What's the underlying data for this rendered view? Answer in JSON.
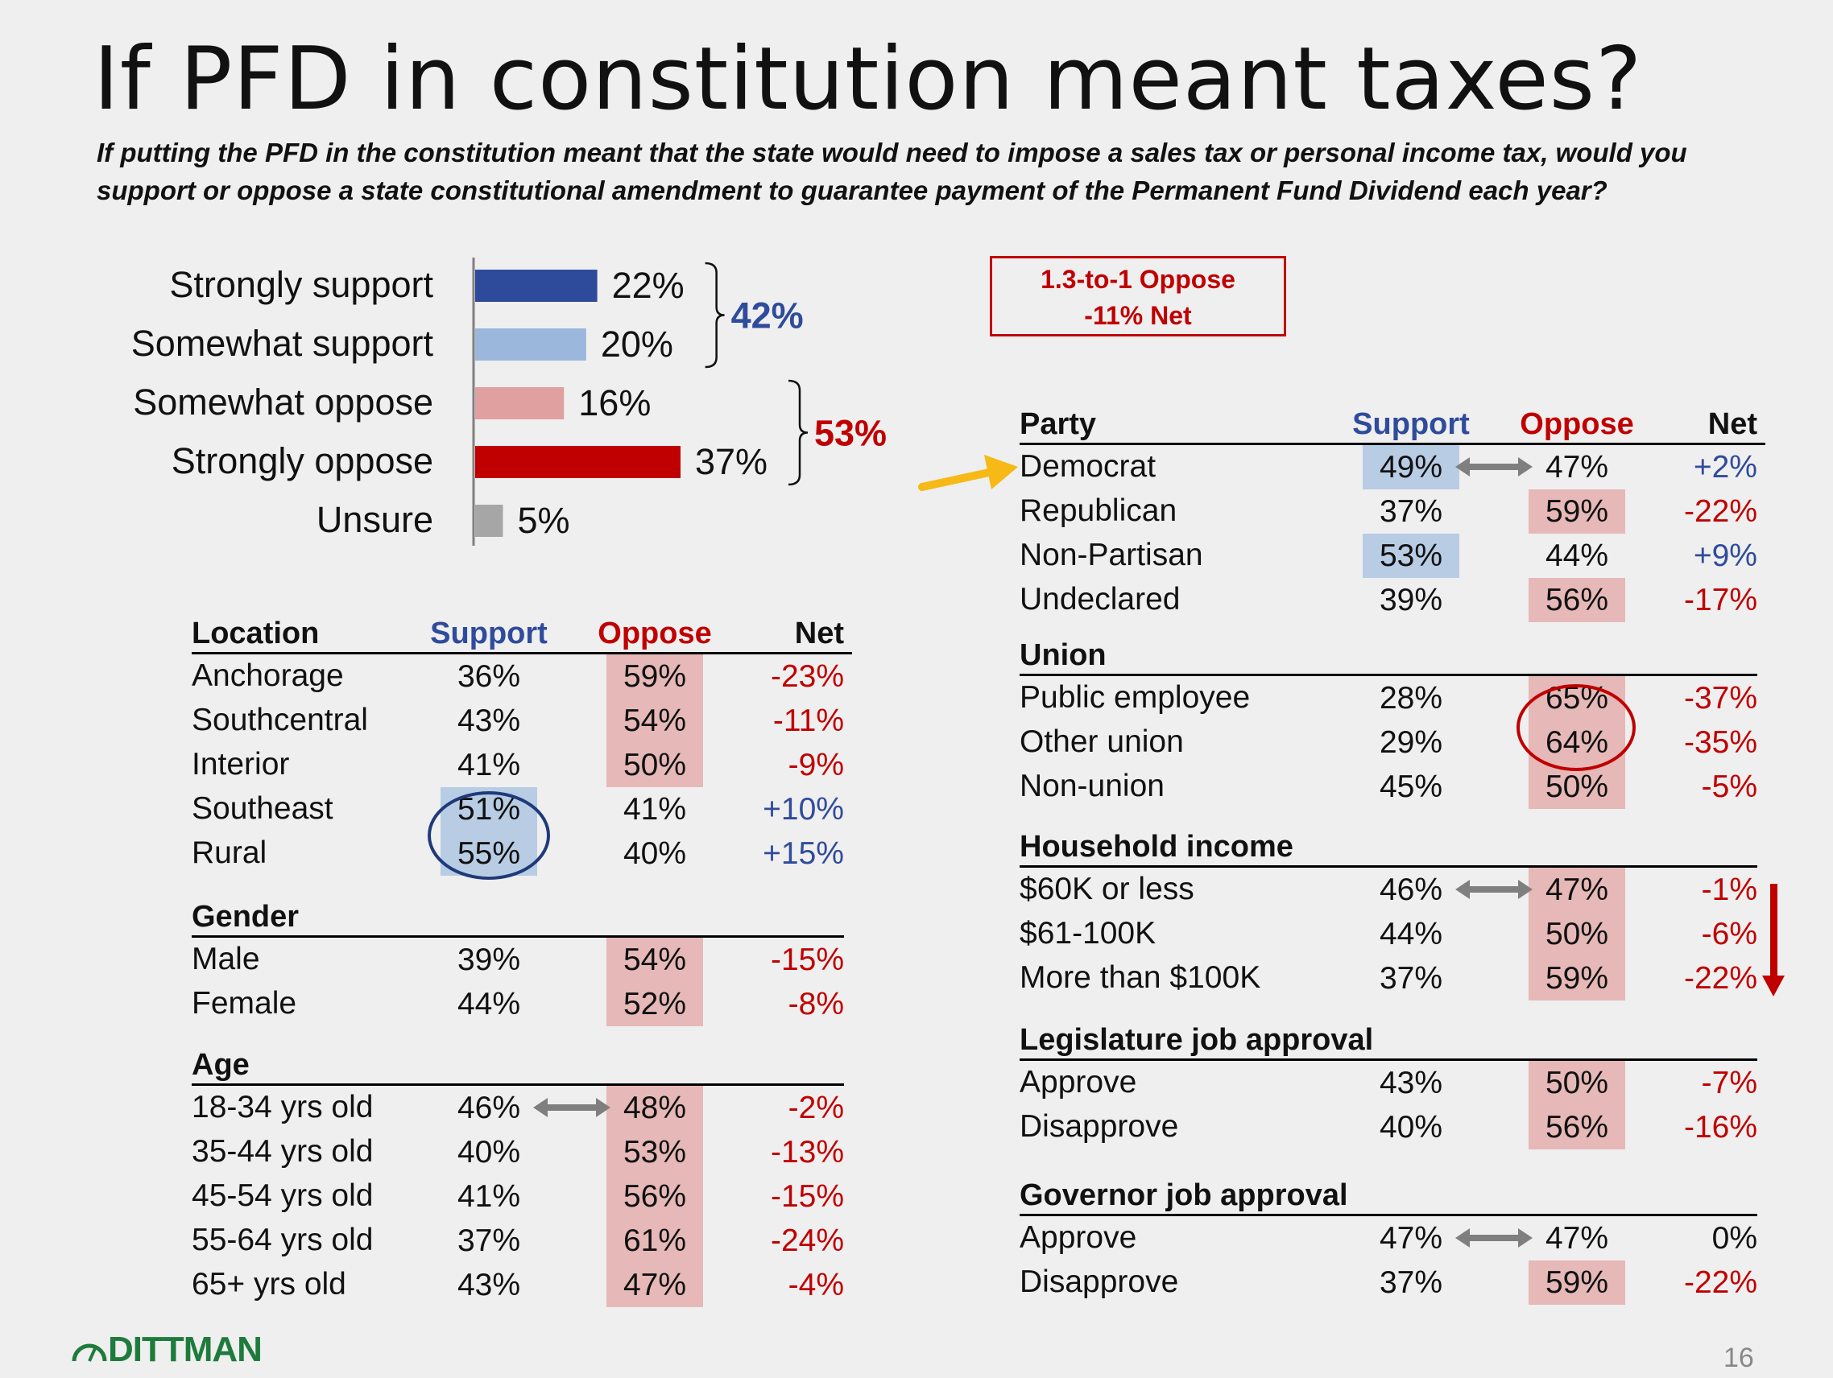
{
  "title": "If PFD in constitution meant taxes?",
  "subtitle": "If putting the PFD in the constitution meant that the state would need to impose a sales tax or personal income tax, would you support or oppose a state constitutional amendment to guarantee payment of the Permanent Fund Dividend each year?",
  "callout": {
    "line1": "1.3-to-1 Oppose",
    "line2": "-11% Net"
  },
  "chart_data": {
    "type": "bar",
    "orientation": "horizontal",
    "categories": [
      "Strongly support",
      "Somewhat support",
      "Somewhat oppose",
      "Strongly oppose",
      "Unsure"
    ],
    "values": [
      22,
      20,
      16,
      37,
      5
    ],
    "value_labels": [
      "22%",
      "20%",
      "16%",
      "37%",
      "5%"
    ],
    "colors": [
      "#2e4a9a",
      "#9bb7dc",
      "#e0a0a0",
      "#c00000",
      "#a6a6a6"
    ],
    "groups": [
      {
        "label": "42%",
        "categories": [
          "Strongly support",
          "Somewhat support"
        ],
        "color": "#2f4b9b"
      },
      {
        "label": "53%",
        "categories": [
          "Somewhat oppose",
          "Strongly oppose"
        ],
        "color": "#c00000"
      }
    ],
    "xlim": [
      0,
      37
    ]
  },
  "columns": {
    "support": "Support",
    "oppose": "Oppose",
    "net": "Net"
  },
  "colors": {
    "support": "#2f4b9b",
    "oppose": "#c00000",
    "highlight_red": "#e6b8b8",
    "highlight_blue": "#b8cce4",
    "brand": "#1e7b3c"
  },
  "left_sections": [
    {
      "title": "Location",
      "show_columns": true,
      "rows": [
        {
          "label": "Anchorage",
          "support": "36%",
          "oppose": "59%",
          "net": "-23%",
          "hl": "oppose"
        },
        {
          "label": "Southcentral",
          "support": "43%",
          "oppose": "54%",
          "net": "-11%",
          "hl": "oppose"
        },
        {
          "label": "Interior",
          "support": "41%",
          "oppose": "50%",
          "net": "-9%",
          "hl": "oppose"
        },
        {
          "label": "Southeast",
          "support": "51%",
          "oppose": "41%",
          "net": "+10%",
          "hl": "support"
        },
        {
          "label": "Rural",
          "support": "55%",
          "oppose": "40%",
          "net": "+15%",
          "hl": "support"
        }
      ]
    },
    {
      "title": "Gender",
      "rows": [
        {
          "label": "Male",
          "support": "39%",
          "oppose": "54%",
          "net": "-15%",
          "hl": "oppose"
        },
        {
          "label": "Female",
          "support": "44%",
          "oppose": "52%",
          "net": "-8%",
          "hl": "oppose"
        }
      ]
    },
    {
      "title": "Age",
      "rows": [
        {
          "label": "18-34 yrs old",
          "support": "46%",
          "oppose": "48%",
          "net": "-2%",
          "hl": "oppose",
          "arrow": true
        },
        {
          "label": "35-44 yrs old",
          "support": "40%",
          "oppose": "53%",
          "net": "-13%",
          "hl": "oppose"
        },
        {
          "label": "45-54 yrs old",
          "support": "41%",
          "oppose": "56%",
          "net": "-15%",
          "hl": "oppose"
        },
        {
          "label": "55-64 yrs old",
          "support": "37%",
          "oppose": "61%",
          "net": "-24%",
          "hl": "oppose"
        },
        {
          "label": "65+ yrs old",
          "support": "43%",
          "oppose": "47%",
          "net": "-4%",
          "hl": "oppose"
        }
      ]
    }
  ],
  "right_sections": [
    {
      "title": "Party",
      "show_columns": true,
      "rows": [
        {
          "label": "Democrat",
          "support": "49%",
          "oppose": "47%",
          "net": "+2%",
          "hl": "support",
          "arrow": true
        },
        {
          "label": "Republican",
          "support": "37%",
          "oppose": "59%",
          "net": "-22%",
          "hl": "oppose"
        },
        {
          "label": "Non-Partisan",
          "support": "53%",
          "oppose": "44%",
          "net": "+9%",
          "hl": "support"
        },
        {
          "label": "Undeclared",
          "support": "39%",
          "oppose": "56%",
          "net": "-17%",
          "hl": "oppose"
        }
      ]
    },
    {
      "title": "Union",
      "rows": [
        {
          "label": "Public employee",
          "support": "28%",
          "oppose": "65%",
          "net": "-37%",
          "hl": "oppose"
        },
        {
          "label": "Other union",
          "support": "29%",
          "oppose": "64%",
          "net": "-35%",
          "hl": "oppose"
        },
        {
          "label": "Non-union",
          "support": "45%",
          "oppose": "50%",
          "net": "-5%",
          "hl": "oppose"
        }
      ]
    },
    {
      "title": "Household income",
      "rows": [
        {
          "label": "$60K or less",
          "support": "46%",
          "oppose": "47%",
          "net": "-1%",
          "hl": "oppose",
          "arrow": true
        },
        {
          "label": "$61-100K",
          "support": "44%",
          "oppose": "50%",
          "net": "-6%",
          "hl": "oppose"
        },
        {
          "label": "More than $100K",
          "support": "37%",
          "oppose": "59%",
          "net": "-22%",
          "hl": "oppose"
        }
      ]
    },
    {
      "title": "Legislature job approval",
      "rows": [
        {
          "label": "Approve",
          "support": "43%",
          "oppose": "50%",
          "net": "-7%",
          "hl": "oppose"
        },
        {
          "label": "Disapprove",
          "support": "40%",
          "oppose": "56%",
          "net": "-16%",
          "hl": "oppose"
        }
      ]
    },
    {
      "title": "Governor job approval",
      "rows": [
        {
          "label": "Approve",
          "support": "47%",
          "oppose": "47%",
          "net": "0%",
          "hl": "none",
          "arrow": true
        },
        {
          "label": "Disapprove",
          "support": "37%",
          "oppose": "59%",
          "net": "-22%",
          "hl": "oppose"
        }
      ]
    }
  ],
  "footer": {
    "brand": "DITTMAN",
    "page": "16"
  }
}
